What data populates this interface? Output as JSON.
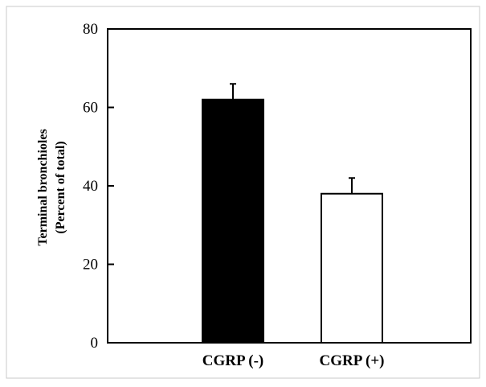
{
  "chart_data": {
    "type": "bar",
    "categories": [
      "CGRP (-)",
      "CGRP (+)"
    ],
    "values": [
      62,
      38
    ],
    "error": [
      4,
      4
    ],
    "bar_fills": [
      "#000000",
      "#ffffff"
    ],
    "ylabel_lines": [
      "Terminal bronchioles",
      "(Percent of total)"
    ],
    "ylim": [
      0,
      80
    ],
    "yticks": [
      0,
      20,
      40,
      60,
      80
    ],
    "grid": false,
    "legend": "none"
  }
}
